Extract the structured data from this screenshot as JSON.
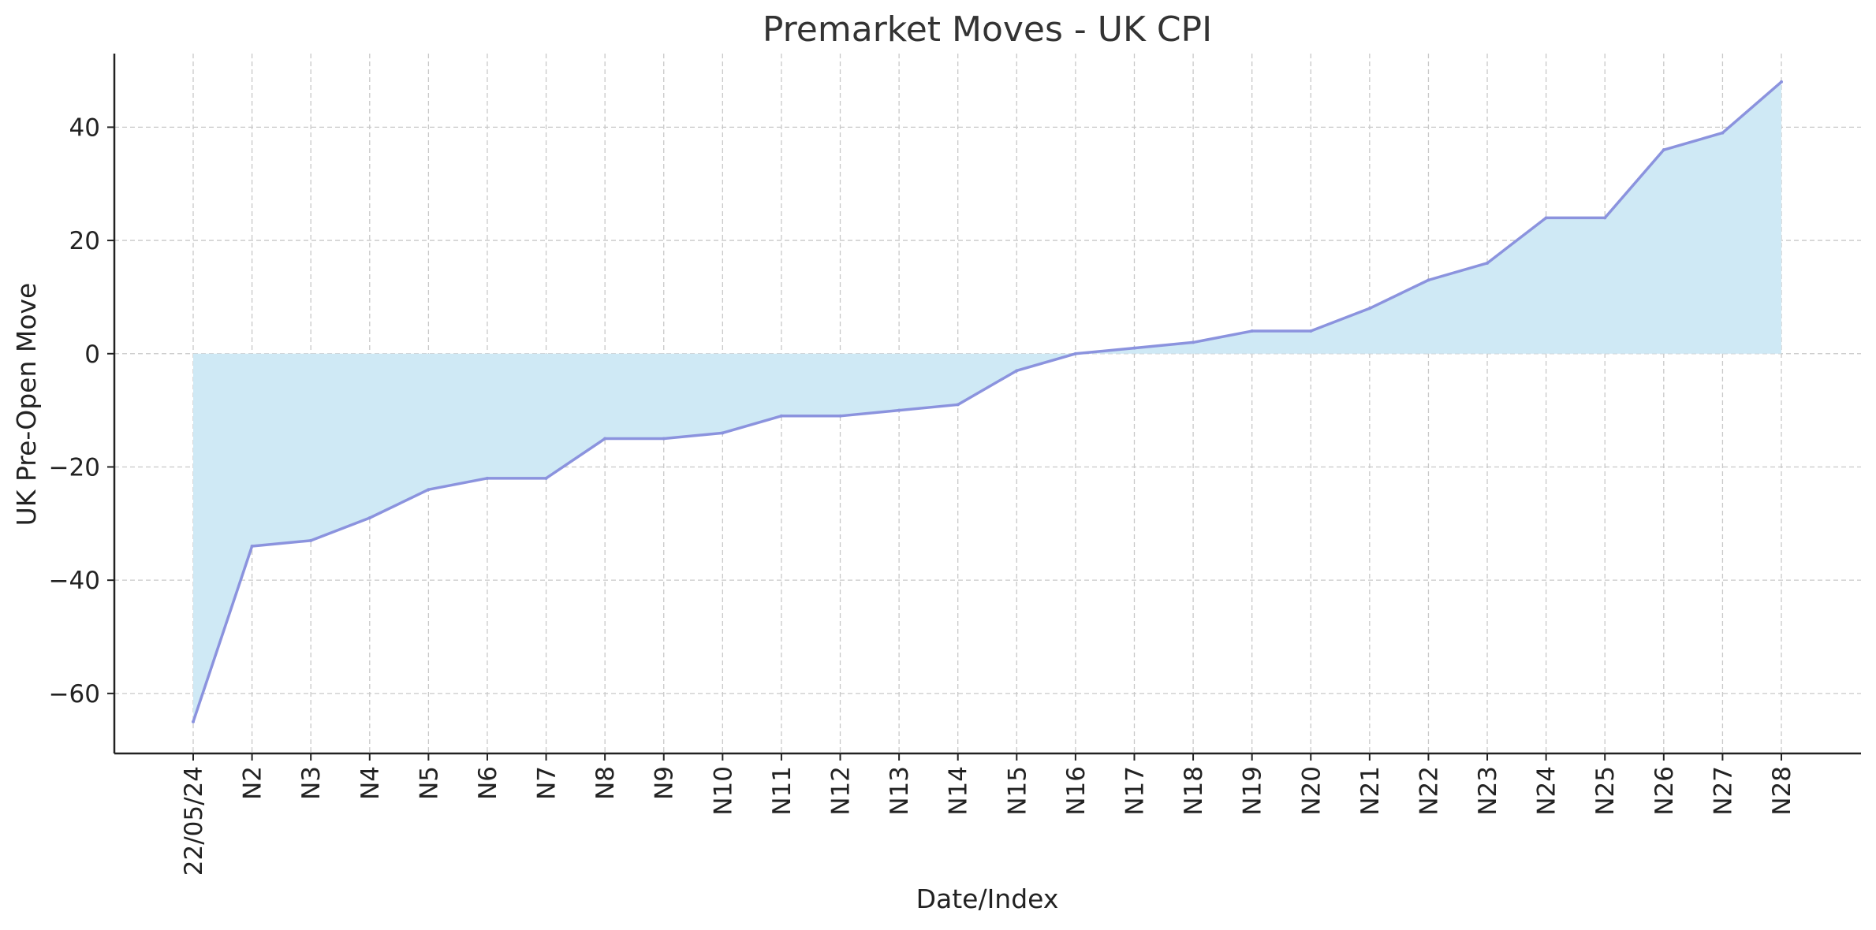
{
  "chart_data": {
    "type": "area",
    "title": "Premarket Moves - UK CPI",
    "xlabel": "Date/Index",
    "ylabel": "UK Pre-Open Move",
    "categories": [
      "22/05/24",
      "N2",
      "N3",
      "N4",
      "N5",
      "N6",
      "N7",
      "N8",
      "N9",
      "N10",
      "N11",
      "N12",
      "N13",
      "N14",
      "N15",
      "N16",
      "N17",
      "N18",
      "N19",
      "N20",
      "N21",
      "N22",
      "N23",
      "N24",
      "N25",
      "N26",
      "N27",
      "N28"
    ],
    "values": [
      -65,
      -34,
      -33,
      -29,
      -24,
      -22,
      -22,
      -15,
      -15,
      -14,
      -11,
      -11,
      -10,
      -9,
      -3,
      0,
      1,
      2,
      4,
      4,
      8,
      13,
      16,
      24,
      24,
      36,
      39,
      48
    ],
    "yticks": [
      -60,
      -40,
      -20,
      0,
      20,
      40
    ],
    "ylim": [
      -70.6,
      53
    ],
    "grid": true,
    "colors": {
      "line": "#8b93de",
      "fill": "#cfe9f5"
    }
  }
}
